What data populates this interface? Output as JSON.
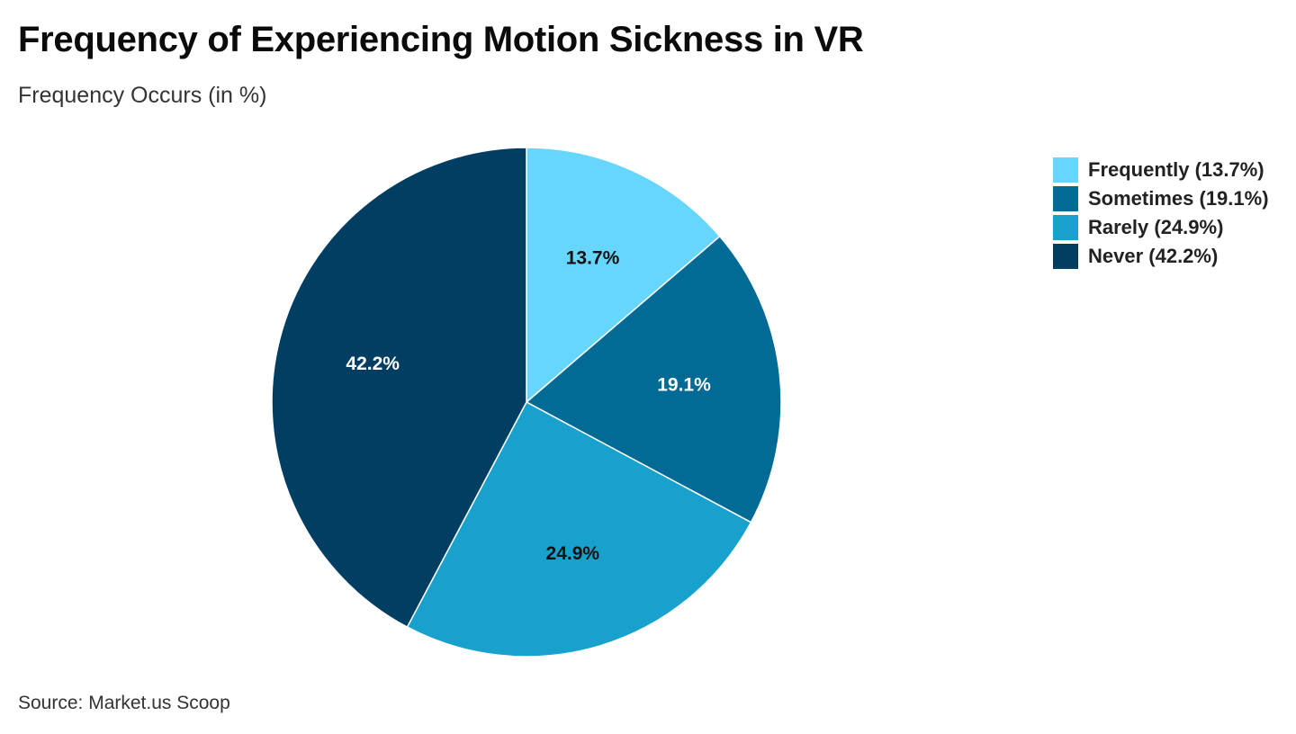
{
  "title": "Frequency of Experiencing Motion Sickness in VR",
  "subtitle": "Frequency Occurs (in %)",
  "source": "Source: Market.us Scoop",
  "chart_data": {
    "type": "pie",
    "title": "Frequency of Experiencing Motion Sickness in VR",
    "subtitle": "Frequency Occurs (in %)",
    "categories": [
      "Frequently",
      "Sometimes",
      "Rarely",
      "Never"
    ],
    "values": [
      13.7,
      19.1,
      24.9,
      42.2
    ],
    "slice_labels": [
      "13.7%",
      "19.1%",
      "24.9%",
      "42.2%"
    ],
    "legend_labels": [
      "Frequently (13.7%)",
      "Sometimes (19.1%)",
      "Rarely (24.9%)",
      "Never (42.2%)"
    ],
    "colors": [
      "#66d6fc",
      "#016a95",
      "#19a1cd",
      "#013e61"
    ],
    "label_colors": [
      "#111111",
      "#ffffff",
      "#111111",
      "#ffffff"
    ],
    "legend_position": "top-right",
    "start_angle": "12 o'clock",
    "direction": "clockwise"
  }
}
